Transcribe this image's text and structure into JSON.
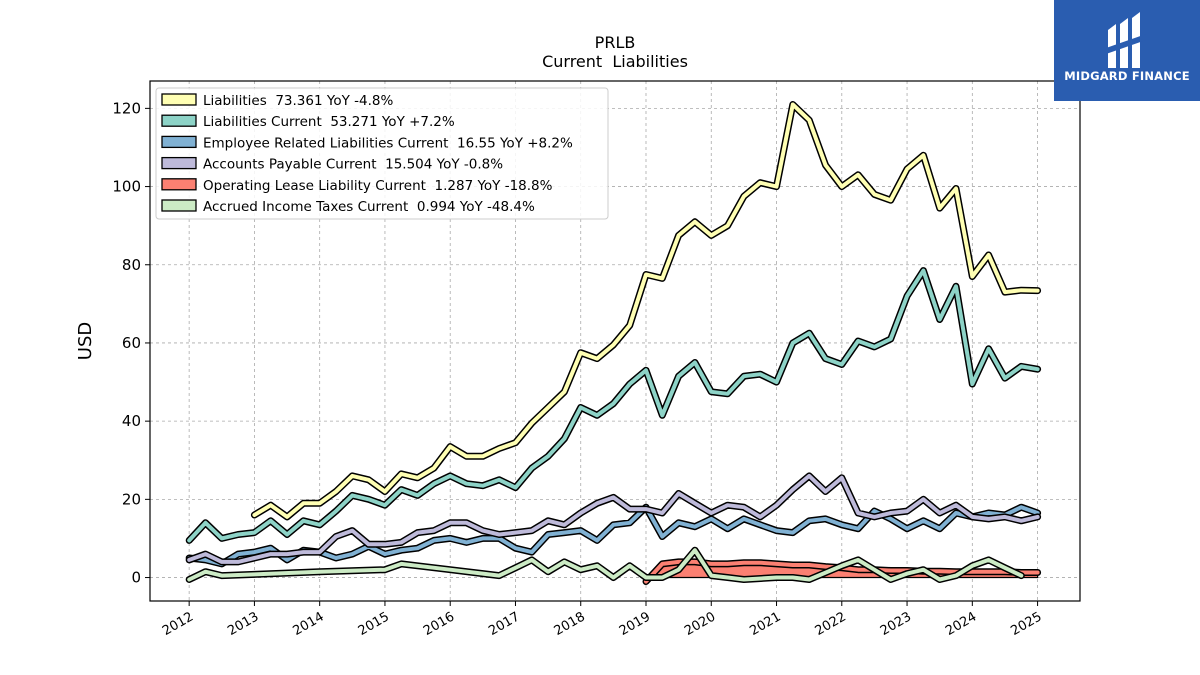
{
  "brand": {
    "name": "MIDGARD FINANCE",
    "icon": "midgard-logo-icon",
    "bg_color": "#2a5db0"
  },
  "chart_data": {
    "type": "line",
    "title": "PRLB",
    "subtitle": "Current  Liabilities",
    "xlabel": "",
    "ylabel": "USD",
    "ylim": [
      -6,
      127
    ],
    "xlim": [
      2011.4,
      2025.65
    ],
    "yticks": [
      0,
      20,
      40,
      60,
      80,
      100,
      120
    ],
    "xticks": [
      "2012",
      "2013",
      "2014",
      "2015",
      "2016",
      "2017",
      "2018",
      "2019",
      "2020",
      "2021",
      "2022",
      "2023",
      "2024",
      "2025"
    ],
    "grid": true,
    "legend_position": "top-left",
    "series": [
      {
        "name": "Liabilities",
        "legend_label": "Liabilities  73.361 YoY -4.8%",
        "color": "#ffffb3",
        "x": [
          2013.0,
          2013.25,
          2013.5,
          2013.75,
          2014.0,
          2014.25,
          2014.5,
          2014.75,
          2015.0,
          2015.25,
          2015.5,
          2015.75,
          2016.0,
          2016.25,
          2016.5,
          2016.75,
          2017.0,
          2017.25,
          2017.5,
          2017.75,
          2018.0,
          2018.25,
          2018.5,
          2018.75,
          2019.0,
          2019.25,
          2019.5,
          2019.75,
          2020.0,
          2020.25,
          2020.5,
          2020.75,
          2021.0,
          2021.25,
          2021.5,
          2021.75,
          2022.0,
          2022.25,
          2022.5,
          2022.75,
          2023.0,
          2023.25,
          2023.5,
          2023.75,
          2024.0,
          2024.25,
          2024.5,
          2024.75,
          2025.0
        ],
        "y": [
          16,
          18.5,
          15.5,
          19,
          19,
          22,
          26,
          25,
          22,
          26.5,
          25.5,
          28,
          33.5,
          31,
          31,
          33,
          34.5,
          39.5,
          43.5,
          47.5,
          57.5,
          56,
          59.5,
          64.5,
          77.5,
          76.5,
          87.5,
          91,
          87.5,
          90,
          97.5,
          101,
          100,
          121,
          117,
          105.5,
          100,
          103,
          98,
          96.5,
          104.5,
          108,
          94.5,
          99.5,
          77,
          82.5,
          73,
          73.5,
          73.4
        ]
      },
      {
        "name": "Liabilities Current",
        "legend_label": "Liabilities Current  53.271 YoY +7.2%",
        "color": "#8dd3c7",
        "x": [
          2012.0,
          2012.25,
          2012.5,
          2012.75,
          2013.0,
          2013.25,
          2013.5,
          2013.75,
          2014.0,
          2014.25,
          2014.5,
          2014.75,
          2015.0,
          2015.25,
          2015.5,
          2015.75,
          2016.0,
          2016.25,
          2016.5,
          2016.75,
          2017.0,
          2017.25,
          2017.5,
          2017.75,
          2018.0,
          2018.25,
          2018.5,
          2018.75,
          2019.0,
          2019.25,
          2019.5,
          2019.75,
          2020.0,
          2020.25,
          2020.5,
          2020.75,
          2021.0,
          2021.25,
          2021.5,
          2021.75,
          2022.0,
          2022.25,
          2022.5,
          2022.75,
          2023.0,
          2023.25,
          2023.5,
          2023.75,
          2024.0,
          2024.25,
          2024.5,
          2024.75,
          2025.0
        ],
        "y": [
          9.5,
          14,
          10,
          11,
          11.5,
          14.5,
          11,
          14.5,
          13.5,
          17,
          21,
          20,
          18.5,
          22.5,
          21,
          24,
          26,
          24,
          23.5,
          25,
          23,
          28,
          31,
          35.5,
          43.5,
          41.5,
          44.5,
          49.5,
          53,
          41.5,
          51.5,
          55,
          47.5,
          47,
          51.5,
          52,
          50,
          60,
          62.5,
          56,
          54.5,
          60.5,
          59,
          61,
          72,
          78.5,
          66,
          74.5,
          49.5,
          58.5,
          51,
          54,
          53.3
        ]
      },
      {
        "name": "Employee Related Liabilities Current",
        "legend_label": "Employee Related Liabilities Current  16.55 YoY +8.2%",
        "color": "#80b1d3",
        "x": [
          2012.0,
          2012.25,
          2012.5,
          2012.75,
          2013.0,
          2013.25,
          2013.5,
          2013.75,
          2014.0,
          2014.25,
          2014.5,
          2014.75,
          2015.0,
          2015.25,
          2015.5,
          2015.75,
          2016.0,
          2016.25,
          2016.5,
          2016.75,
          2017.0,
          2017.25,
          2017.5,
          2017.75,
          2018.0,
          2018.25,
          2018.5,
          2018.75,
          2019.0,
          2019.25,
          2019.5,
          2019.75,
          2020.0,
          2020.25,
          2020.5,
          2020.75,
          2021.0,
          2021.25,
          2021.5,
          2021.75,
          2022.0,
          2022.25,
          2022.5,
          2022.75,
          2023.0,
          2023.25,
          2023.5,
          2023.75,
          2024.0,
          2024.25,
          2024.5,
          2024.75,
          2025.0
        ],
        "y": [
          5,
          4.5,
          3.5,
          6,
          6.5,
          7.5,
          4.5,
          7,
          6.5,
          5,
          6,
          8,
          6,
          7,
          7.5,
          9.5,
          10,
          9,
          10,
          10,
          7.5,
          6.5,
          11,
          11.5,
          12,
          9.5,
          13.5,
          14,
          18,
          10.5,
          14,
          13,
          15,
          12.5,
          15,
          13.5,
          12,
          11.5,
          14.5,
          15,
          13.5,
          12.5,
          17,
          15,
          12.5,
          14.5,
          12.5,
          16.5,
          15.5,
          16.5,
          16,
          18,
          16.5
        ]
      },
      {
        "name": "Accounts Payable Current",
        "legend_label": "Accounts Payable Current  15.504 YoY -0.8%",
        "color": "#bebada",
        "x": [
          2012.0,
          2012.25,
          2012.5,
          2012.75,
          2013.0,
          2013.25,
          2013.5,
          2013.75,
          2014.0,
          2014.25,
          2014.5,
          2014.75,
          2015.0,
          2015.25,
          2015.5,
          2015.75,
          2016.0,
          2016.25,
          2016.5,
          2016.75,
          2017.0,
          2017.25,
          2017.5,
          2017.75,
          2018.0,
          2018.25,
          2018.5,
          2018.75,
          2019.0,
          2019.25,
          2019.5,
          2019.75,
          2020.0,
          2020.25,
          2020.5,
          2020.75,
          2021.0,
          2021.25,
          2021.5,
          2021.75,
          2022.0,
          2022.25,
          2022.5,
          2022.75,
          2023.0,
          2023.25,
          2023.5,
          2023.75,
          2024.0,
          2024.25,
          2024.5,
          2024.75,
          2025.0
        ],
        "y": [
          4.5,
          6,
          4,
          4,
          5,
          6,
          6,
          6.5,
          6.5,
          10.5,
          12,
          8.5,
          8.5,
          9,
          11.5,
          12,
          14,
          14,
          12,
          11,
          11.5,
          12,
          14.5,
          13.5,
          16.5,
          19,
          20.5,
          17.5,
          17.5,
          16.5,
          21.5,
          19,
          16.5,
          18.5,
          18,
          15.5,
          18.5,
          22.5,
          26,
          22,
          25.5,
          16.5,
          15.5,
          16.5,
          17,
          20,
          16.5,
          18.5,
          15.5,
          15,
          15.5,
          14.5,
          15.5
        ]
      },
      {
        "name": "Operating Lease Liability Current",
        "legend_label": "Operating Lease Liability Current  1.287 YoY -18.8%",
        "color": "#fb8072",
        "x": [
          2019.0,
          2019.25,
          2019.5,
          2019.75,
          2020.0,
          2020.25,
          2020.5,
          2020.75,
          2021.0,
          2021.25,
          2021.5,
          2021.75,
          2022.0,
          2022.25,
          2022.5,
          2022.75,
          2023.0,
          2023.25,
          2023.5,
          2023.75,
          2024.0,
          2024.25,
          2024.5,
          2024.75,
          2025.0
        ],
        "y": [
          -1,
          3.5,
          4,
          4,
          3.5,
          3.5,
          3.8,
          3.8,
          3.5,
          3.2,
          3.2,
          2.8,
          2.5,
          2,
          2,
          1.8,
          1.8,
          1.6,
          1.6,
          1.5,
          1.5,
          1.5,
          1.5,
          1.3,
          1.29
        ],
        "y_low": [
          0,
          0,
          0,
          0,
          0,
          0,
          0,
          0,
          0,
          0,
          0,
          0,
          0,
          0,
          0,
          0,
          0,
          0,
          0,
          0,
          0,
          0,
          0,
          0,
          0
        ],
        "fill": true
      },
      {
        "name": "Accrued Income Taxes Current",
        "legend_label": "Accrued Income Taxes Current  0.994 YoY -48.4%",
        "color": "#ccebc5",
        "x": [
          2012.0,
          2012.25,
          2012.5,
          2013.0,
          2014.0,
          2015.0,
          2015.25,
          2015.5,
          2016.0,
          2016.5,
          2016.75,
          2017.0,
          2017.25,
          2017.5,
          2017.75,
          2018.0,
          2018.25,
          2018.5,
          2018.75,
          2019.0,
          2019.25,
          2019.5,
          2019.75,
          2020.0,
          2020.25,
          2020.5,
          2021.0,
          2021.25,
          2021.5,
          2022.0,
          2022.25,
          2022.5,
          2022.75,
          2023.0,
          2023.25,
          2023.5,
          2023.75,
          2024.0,
          2024.25,
          2024.5,
          2024.75
        ],
        "y": [
          -0.5,
          1.5,
          0.5,
          0.8,
          1.5,
          2,
          3.5,
          3,
          2,
          1,
          0.5,
          2.5,
          4.5,
          1.5,
          4,
          2,
          3,
          0,
          3,
          0,
          0,
          2,
          7,
          0.5,
          0,
          -0.5,
          0,
          0,
          -0.5,
          3,
          4.5,
          2,
          -0.5,
          1,
          2,
          -0.5,
          0.5,
          3,
          4.5,
          2.5,
          0.5
        ]
      }
    ]
  }
}
